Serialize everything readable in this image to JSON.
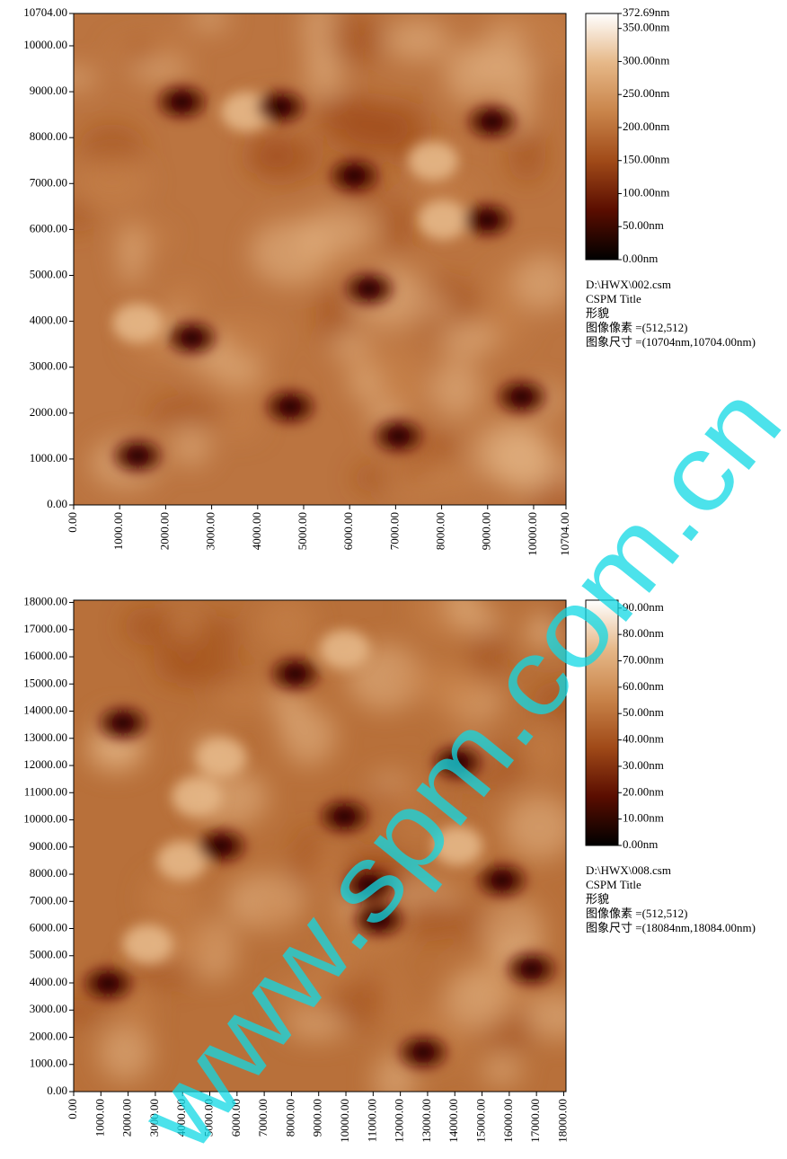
{
  "chart_data": [
    {
      "type": "heatmap",
      "xlim": [
        0,
        10704
      ],
      "ylim": [
        0,
        10704
      ],
      "xticks": [
        {
          "value": 0,
          "label": "0.00"
        },
        {
          "value": 1000,
          "label": "1000.00"
        },
        {
          "value": 2000,
          "label": "2000.00"
        },
        {
          "value": 3000,
          "label": "3000.00"
        },
        {
          "value": 4000,
          "label": "4000.00"
        },
        {
          "value": 5000,
          "label": "5000.00"
        },
        {
          "value": 6000,
          "label": "6000.00"
        },
        {
          "value": 7000,
          "label": "7000.00"
        },
        {
          "value": 8000,
          "label": "8000.00"
        },
        {
          "value": 9000,
          "label": "9000.00"
        },
        {
          "value": 10000,
          "label": "10000.00"
        },
        {
          "value": 10704,
          "label": "10704.00"
        }
      ],
      "yticks": [
        {
          "value": 0,
          "label": "0.00"
        },
        {
          "value": 1000,
          "label": "1000.00"
        },
        {
          "value": 2000,
          "label": "2000.00"
        },
        {
          "value": 3000,
          "label": "3000.00"
        },
        {
          "value": 4000,
          "label": "4000.00"
        },
        {
          "value": 5000,
          "label": "5000.00"
        },
        {
          "value": 6000,
          "label": "6000.00"
        },
        {
          "value": 7000,
          "label": "7000.00"
        },
        {
          "value": 8000,
          "label": "8000.00"
        },
        {
          "value": 9000,
          "label": "9000.00"
        },
        {
          "value": 10000,
          "label": "10000.00"
        },
        {
          "value": 10704,
          "label": "10704.00"
        }
      ],
      "clim": [
        0,
        372.69
      ],
      "cticks": [
        {
          "value": 0,
          "label": "0.00nm"
        },
        {
          "value": 50,
          "label": "50.00nm"
        },
        {
          "value": 100,
          "label": "100.00nm"
        },
        {
          "value": 150,
          "label": "150.00nm"
        },
        {
          "value": 200,
          "label": "200.00nm"
        },
        {
          "value": 250,
          "label": "250.00nm"
        },
        {
          "value": 300,
          "label": "300.00nm"
        },
        {
          "value": 350,
          "label": "350.00nm"
        },
        {
          "value": 372.69,
          "label": "372.69nm"
        }
      ],
      "colormap": [
        "#000000",
        "#5a0d00",
        "#a04a18",
        "#c9844a",
        "#e6b888",
        "#ffffff"
      ],
      "info": [
        "D:\\HWX\\002.csm",
        "CSPM Title",
        "形貌",
        "图像像素 =(512,512)",
        "图象尺寸 =(10704nm,10704.00nm)"
      ]
    },
    {
      "type": "heatmap",
      "xlim": [
        0,
        18084
      ],
      "ylim": [
        0,
        18084
      ],
      "xticks": [
        {
          "value": 0,
          "label": "0.00"
        },
        {
          "value": 1000,
          "label": "1000.00"
        },
        {
          "value": 2000,
          "label": "2000.00"
        },
        {
          "value": 3000,
          "label": "3000.00"
        },
        {
          "value": 4000,
          "label": "4000.00"
        },
        {
          "value": 5000,
          "label": "5000.00"
        },
        {
          "value": 6000,
          "label": "6000.00"
        },
        {
          "value": 7000,
          "label": "7000.00"
        },
        {
          "value": 8000,
          "label": "8000.00"
        },
        {
          "value": 9000,
          "label": "9000.00"
        },
        {
          "value": 10000,
          "label": "10000.00"
        },
        {
          "value": 11000,
          "label": "11000.00"
        },
        {
          "value": 12000,
          "label": "12000.00"
        },
        {
          "value": 13000,
          "label": "13000.00"
        },
        {
          "value": 14000,
          "label": "14000.00"
        },
        {
          "value": 15000,
          "label": "15000.00"
        },
        {
          "value": 16000,
          "label": "16000.00"
        },
        {
          "value": 17000,
          "label": "17000.00"
        },
        {
          "value": 18000,
          "label": "18000.00"
        }
      ],
      "yticks": [
        {
          "value": 0,
          "label": "0.00"
        },
        {
          "value": 1000,
          "label": "1000.00"
        },
        {
          "value": 2000,
          "label": "2000.00"
        },
        {
          "value": 3000,
          "label": "3000.00"
        },
        {
          "value": 4000,
          "label": "4000.00"
        },
        {
          "value": 5000,
          "label": "5000.00"
        },
        {
          "value": 6000,
          "label": "6000.00"
        },
        {
          "value": 7000,
          "label": "7000.00"
        },
        {
          "value": 8000,
          "label": "8000.00"
        },
        {
          "value": 9000,
          "label": "9000.00"
        },
        {
          "value": 10000,
          "label": "10000.00"
        },
        {
          "value": 11000,
          "label": "11000.00"
        },
        {
          "value": 12000,
          "label": "12000.00"
        },
        {
          "value": 13000,
          "label": "13000.00"
        },
        {
          "value": 14000,
          "label": "14000.00"
        },
        {
          "value": 15000,
          "label": "15000.00"
        },
        {
          "value": 16000,
          "label": "16000.00"
        },
        {
          "value": 17000,
          "label": "17000.00"
        },
        {
          "value": 18000,
          "label": "18000.00"
        }
      ],
      "clim": [
        0,
        93
      ],
      "cticks": [
        {
          "value": 0,
          "label": "0.00nm"
        },
        {
          "value": 10,
          "label": "10.00nm"
        },
        {
          "value": 20,
          "label": "20.00nm"
        },
        {
          "value": 30,
          "label": "30.00nm"
        },
        {
          "value": 40,
          "label": "40.00nm"
        },
        {
          "value": 50,
          "label": "50.00nm"
        },
        {
          "value": 60,
          "label": "60.00nm"
        },
        {
          "value": 70,
          "label": "70.00nm"
        },
        {
          "value": 80,
          "label": "80.00nm"
        },
        {
          "value": 90,
          "label": "90.00nm"
        }
      ],
      "colormap": [
        "#000000",
        "#5a0d00",
        "#a04a18",
        "#c9844a",
        "#e6b888",
        "#ffffff"
      ],
      "info": [
        "D:\\HWX\\008.csm",
        "CSPM Title",
        "形貌",
        "图像像素 =(512,512)",
        "图象尺寸 =(18084nm,18084.00nm)"
      ]
    }
  ],
  "watermark": "www.spm.com.cn"
}
